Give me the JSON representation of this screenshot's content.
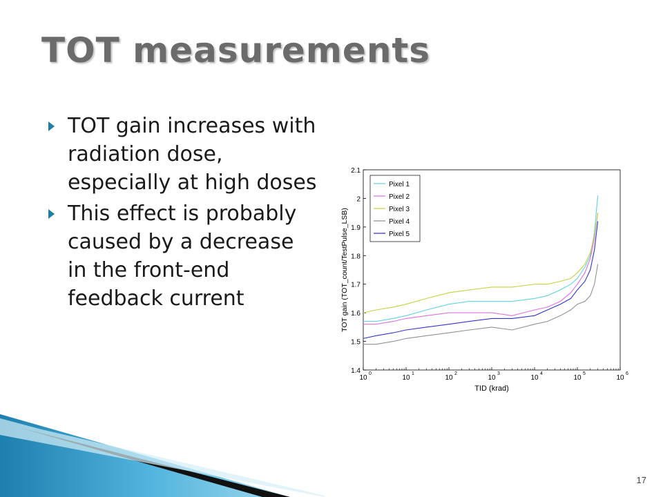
{
  "slide": {
    "title": "TOT measurements",
    "bullets": [
      "TOT gain increases with radiation dose, especially at high doses",
      "This effect is probably caused by a decrease in the front-end feedback current"
    ],
    "slide_number": "17"
  },
  "colors": {
    "title": "#6b6b6b",
    "bullet_marker": "#1f7ea1",
    "decoration_blue": "#1f8fbf",
    "decoration_dark": "#1a1a1a"
  },
  "icons": [
    "bullet-arrow-icon"
  ],
  "chart_data": {
    "type": "line",
    "xlabel": "TID (krad)",
    "ylabel": "TOT gain (TOT_count/TestPulse_LSB)",
    "xscale": "log",
    "xlim": [
      1,
      1000000
    ],
    "ylim": [
      1.4,
      2.1
    ],
    "x_ticks": [
      1,
      10,
      100,
      1000,
      10000,
      100000,
      1000000
    ],
    "x_tick_labels": [
      {
        "base": "10",
        "exp": "0"
      },
      {
        "base": "10",
        "exp": "1"
      },
      {
        "base": "10",
        "exp": "2"
      },
      {
        "base": "10",
        "exp": "3"
      },
      {
        "base": "10",
        "exp": "4"
      },
      {
        "base": "10",
        "exp": "5"
      },
      {
        "base": "10",
        "exp": "6"
      }
    ],
    "y_ticks": [
      1.4,
      1.5,
      1.6,
      1.7,
      1.8,
      1.9,
      2.0,
      2.1
    ],
    "y_tick_labels": [
      "1.4",
      "1.5",
      "1.6",
      "1.7",
      "1.8",
      "1.9",
      "2",
      "2.1"
    ],
    "grid": false,
    "legend_position": "top-left",
    "series": [
      {
        "name": "Pixel 1",
        "color": "#5fd3e0",
        "x": [
          1,
          2,
          5,
          10,
          30,
          100,
          300,
          1000,
          3000,
          10000,
          20000,
          40000,
          70000,
          100000,
          150000,
          200000,
          250000,
          300000
        ],
        "y": [
          1.57,
          1.57,
          1.58,
          1.59,
          1.61,
          1.63,
          1.64,
          1.64,
          1.64,
          1.65,
          1.66,
          1.68,
          1.7,
          1.72,
          1.76,
          1.8,
          1.88,
          2.01
        ]
      },
      {
        "name": "Pixel 2",
        "color": "#e070e0",
        "x": [
          1,
          2,
          5,
          10,
          30,
          100,
          300,
          1000,
          3000,
          10000,
          20000,
          40000,
          70000,
          100000,
          150000,
          200000,
          250000,
          300000
        ],
        "y": [
          1.56,
          1.56,
          1.57,
          1.58,
          1.59,
          1.6,
          1.6,
          1.6,
          1.59,
          1.61,
          1.62,
          1.64,
          1.67,
          1.7,
          1.74,
          1.79,
          1.86,
          1.95
        ]
      },
      {
        "name": "Pixel 3",
        "color": "#c8d040",
        "x": [
          1,
          2,
          5,
          10,
          30,
          100,
          300,
          1000,
          3000,
          10000,
          20000,
          40000,
          70000,
          100000,
          150000,
          200000,
          250000,
          300000
        ],
        "y": [
          1.6,
          1.61,
          1.62,
          1.63,
          1.65,
          1.67,
          1.68,
          1.69,
          1.69,
          1.7,
          1.7,
          1.71,
          1.72,
          1.74,
          1.77,
          1.81,
          1.87,
          1.95
        ]
      },
      {
        "name": "Pixel 4",
        "color": "#909090",
        "x": [
          1,
          2,
          5,
          10,
          30,
          100,
          300,
          1000,
          3000,
          10000,
          20000,
          40000,
          70000,
          100000,
          150000,
          200000,
          250000,
          300000
        ],
        "y": [
          1.49,
          1.49,
          1.5,
          1.51,
          1.52,
          1.53,
          1.54,
          1.55,
          1.54,
          1.56,
          1.57,
          1.59,
          1.61,
          1.63,
          1.64,
          1.66,
          1.7,
          1.77
        ]
      },
      {
        "name": "Pixel 5",
        "color": "#3333cc",
        "x": [
          1,
          2,
          5,
          10,
          30,
          100,
          300,
          1000,
          3000,
          10000,
          20000,
          40000,
          70000,
          100000,
          150000,
          200000,
          250000,
          300000
        ],
        "y": [
          1.51,
          1.52,
          1.53,
          1.54,
          1.55,
          1.56,
          1.57,
          1.58,
          1.58,
          1.59,
          1.61,
          1.63,
          1.65,
          1.68,
          1.71,
          1.75,
          1.82,
          1.92
        ]
      }
    ]
  }
}
